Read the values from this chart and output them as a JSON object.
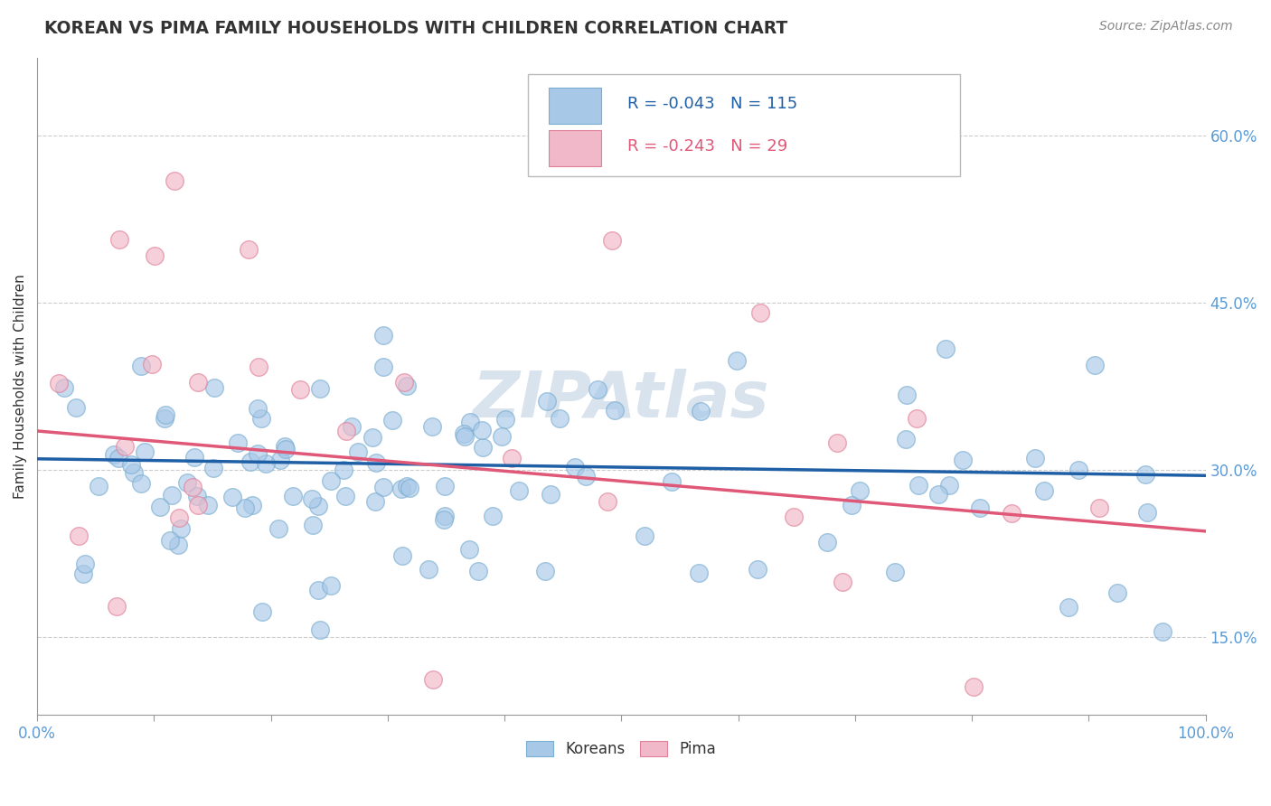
{
  "title": "KOREAN VS PIMA FAMILY HOUSEHOLDS WITH CHILDREN CORRELATION CHART",
  "source": "Source: ZipAtlas.com",
  "ylabel": "Family Households with Children",
  "xlim": [
    0,
    1.0
  ],
  "ylim": [
    0.08,
    0.67
  ],
  "ytick_positions": [
    0.15,
    0.3,
    0.45,
    0.6
  ],
  "ytick_labels": [
    "15.0%",
    "30.0%",
    "45.0%",
    "60.0%"
  ],
  "korean_color": "#a8c8e8",
  "korean_edge": "#7aaed0",
  "pima_color": "#f0b8c8",
  "pima_edge": "#e08098",
  "korean_r": -0.043,
  "korean_n": 115,
  "pima_r": -0.243,
  "pima_n": 29,
  "trend_blue": "#1f5fa6",
  "trend_pink": "#e05878",
  "legend_r_color": "#1f5fa6",
  "legend_pima_color": "#e05878",
  "legend_label_koreans": "Koreans",
  "legend_label_pima": "Pima",
  "background_color": "#ffffff",
  "grid_color": "#cccccc",
  "watermark_color": "#c8d8e8",
  "title_color": "#333333",
  "tick_color": "#5b9bd5",
  "ylabel_color": "#333333",
  "korean_trend_start": 0.31,
  "korean_trend_end": 0.295,
  "pima_trend_start": 0.335,
  "pima_trend_end": 0.245
}
